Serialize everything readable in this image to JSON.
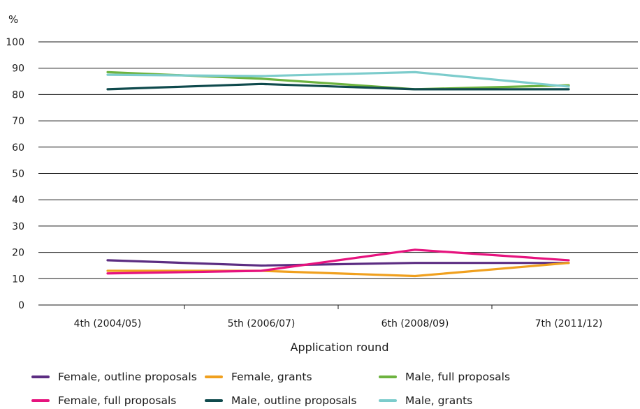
{
  "chart_data": {
    "type": "line",
    "title": "",
    "unit_label": "%",
    "xlabel": "Application round",
    "ylabel": "",
    "ylim": [
      0,
      100
    ],
    "yticks": [
      0,
      10,
      20,
      30,
      40,
      50,
      60,
      70,
      80,
      90,
      100
    ],
    "grid": true,
    "legend_position": "bottom",
    "categories": [
      "4th (2004/05)",
      "5th (2006/07)",
      "6th (2008/09)",
      "7th (2011/12)"
    ],
    "series": [
      {
        "name": "Female, outline proposals",
        "color": "#5c2d82",
        "values": [
          17,
          15,
          16,
          16
        ]
      },
      {
        "name": "Female, grants",
        "color": "#f0a01e",
        "values": [
          13,
          13,
          11,
          16
        ]
      },
      {
        "name": "Male, full proposals",
        "color": "#6db33f",
        "values": [
          88.5,
          86,
          82,
          83.5
        ]
      },
      {
        "name": "Female, full proposals",
        "color": "#e6137e",
        "values": [
          12,
          13,
          21,
          17
        ]
      },
      {
        "name": "Male, outline proposals",
        "color": "#0f4a4d",
        "values": [
          82,
          84,
          82,
          82
        ]
      },
      {
        "name": "Male, grants",
        "color": "#7ccccc",
        "values": [
          87.5,
          87,
          88.5,
          83
        ]
      }
    ]
  }
}
